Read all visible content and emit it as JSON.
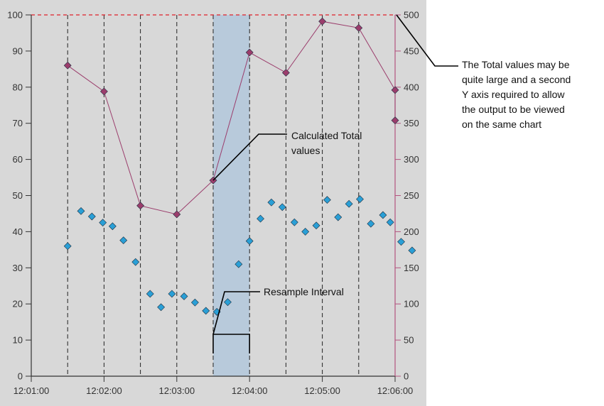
{
  "chart_data": {
    "type": "scatter",
    "x_ticks": [
      "12:01:00",
      "12:02:00",
      "12:03:00",
      "12:04:00",
      "12:05:00",
      "12:06:00"
    ],
    "x_range": [
      "12:01:00",
      "12:06:00"
    ],
    "y_left": {
      "range": [
        0,
        100
      ],
      "ticks": [
        "0",
        "10",
        "20",
        "30",
        "40",
        "50",
        "60",
        "70",
        "80",
        "90",
        "100"
      ]
    },
    "y_right": {
      "range": [
        0,
        500
      ],
      "ticks": [
        "0",
        "50",
        "100",
        "150",
        "200",
        "250",
        "300",
        "350",
        "400",
        "450",
        "500"
      ]
    },
    "grid": false,
    "limit_line": {
      "y_right": 500,
      "color": "#e0202a"
    },
    "resample_lines": [
      "12:01:30",
      "12:02:00",
      "12:02:30",
      "12:03:00",
      "12:03:30",
      "12:04:00",
      "12:04:30",
      "12:05:00",
      "12:05:30",
      "12:06:00"
    ],
    "highlight_interval": {
      "start": "12:03:30",
      "end": "12:04:00",
      "color": "#b8cadb"
    },
    "series": [
      {
        "axis": "left",
        "marker": "diamond",
        "color": "#2a9fd6",
        "points": [
          [
            "12:01:30",
            36
          ],
          [
            "12:01:41",
            45.7
          ],
          [
            "12:01:50",
            44.2
          ],
          [
            "12:01:59",
            42.5
          ],
          [
            "12:02:07",
            41.5
          ],
          [
            "12:02:16",
            37.6
          ],
          [
            "12:02:26",
            31.6
          ],
          [
            "12:02:38",
            22.8
          ],
          [
            "12:02:47",
            19.1
          ],
          [
            "12:02:56",
            22.8
          ],
          [
            "12:03:06",
            22.1
          ],
          [
            "12:03:15",
            20.4
          ],
          [
            "12:03:24",
            18.1
          ],
          [
            "12:03:33",
            17.8
          ],
          [
            "12:03:42",
            20.5
          ],
          [
            "12:03:51",
            31
          ],
          [
            "12:04:00",
            37.4
          ],
          [
            "12:04:09",
            43.6
          ],
          [
            "12:04:18",
            48.1
          ],
          [
            "12:04:27",
            46.8
          ],
          [
            "12:04:37",
            42.6
          ],
          [
            "12:04:46",
            40
          ],
          [
            "12:04:55",
            41.7
          ],
          [
            "12:05:04",
            48.8
          ],
          [
            "12:05:13",
            44
          ],
          [
            "12:05:22",
            47.7
          ],
          [
            "12:05:31",
            49
          ],
          [
            "12:05:40",
            42.2
          ],
          [
            "12:05:50",
            44.6
          ],
          [
            "12:05:56",
            42.6
          ],
          [
            "12:06:05",
            37.2
          ],
          [
            "12:06:14",
            34.8
          ]
        ]
      },
      {
        "axis": "right",
        "marker": "diamond",
        "line": true,
        "color": "#9b3d6c",
        "points": [
          [
            "12:01:30",
            430
          ],
          [
            "12:02:00",
            394
          ],
          [
            "12:02:30",
            236
          ],
          [
            "12:03:00",
            224
          ],
          [
            "12:03:30",
            271
          ],
          [
            "12:04:00",
            448
          ],
          [
            "12:04:30",
            420
          ],
          [
            "12:05:00",
            491
          ],
          [
            "12:05:30",
            482
          ],
          [
            "12:06:00",
            396
          ],
          [
            "12:06:00",
            354
          ]
        ]
      }
    ],
    "annotations": {
      "total": "Calculated Total values",
      "total_lines": [
        "Calculated Total",
        "values"
      ],
      "interval": "Resample Interval",
      "axis_note": "The Total values may be quite large and a second Y axis required to allow the output to be viewed on the same chart",
      "axis_note_lines": [
        "The Total values may be",
        "quite large and a second",
        "Y axis required to allow",
        "the output to be viewed",
        "on the same chart"
      ]
    },
    "colors": {
      "plot_background": "#d8d8d8",
      "right_axis": "#b3537f"
    }
  }
}
